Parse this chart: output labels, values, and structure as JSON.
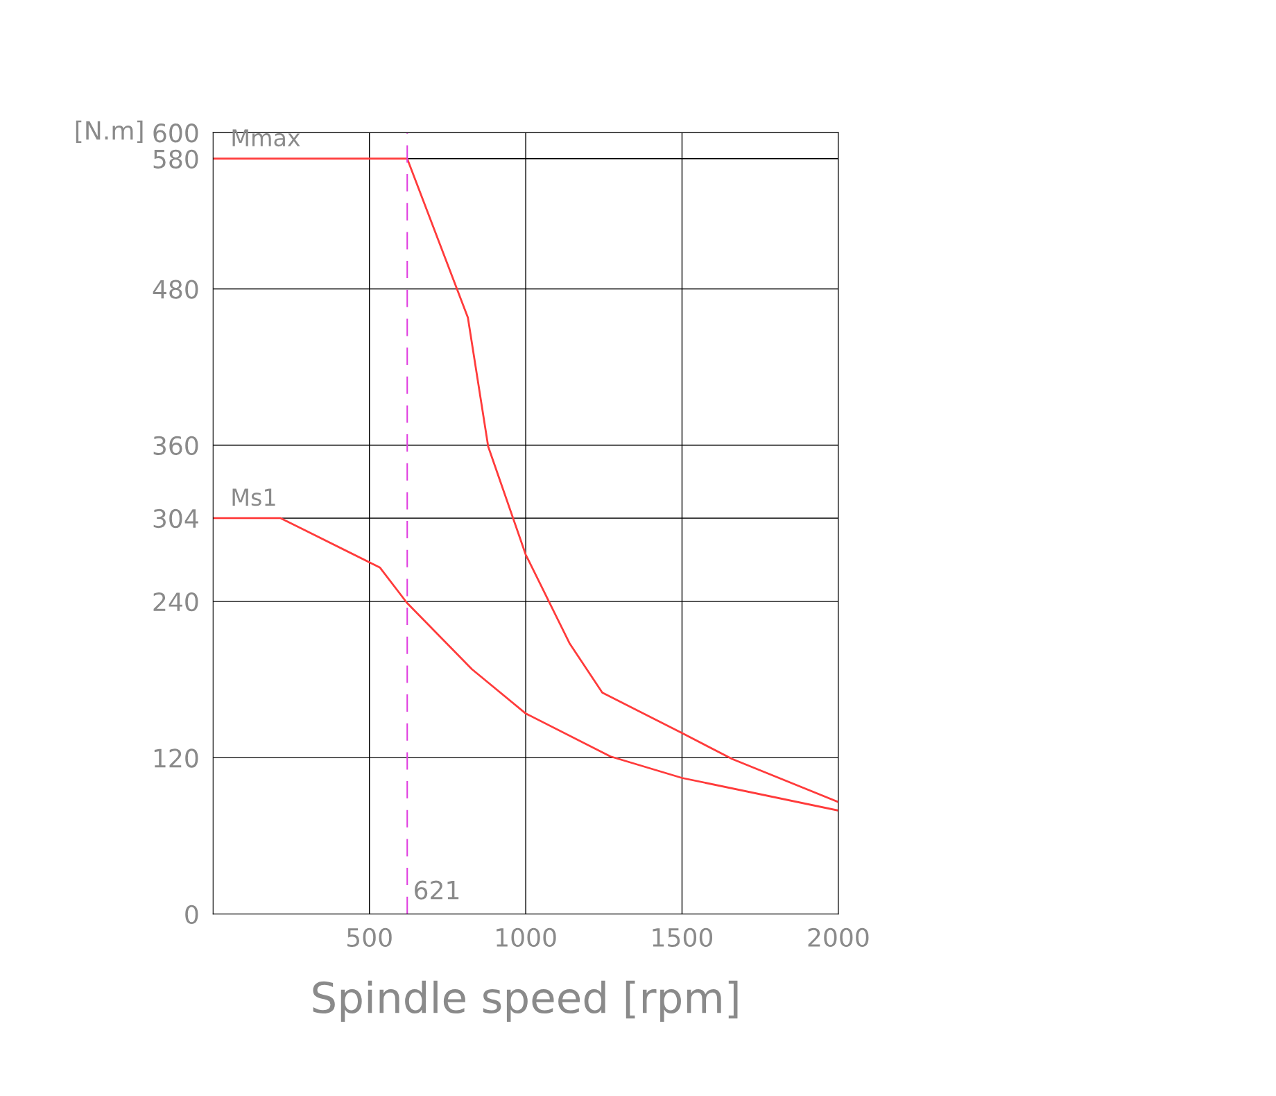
{
  "chart_data": {
    "type": "line",
    "xlabel": "Spindle speed [rpm]",
    "ylabel": "[N.m]",
    "xlim": [
      0,
      2000
    ],
    "xticks": [
      500,
      1000,
      1500,
      2000
    ],
    "ylim": [
      0,
      600
    ],
    "yticks": [
      0,
      120,
      240,
      304,
      360,
      480,
      580,
      600
    ],
    "grid": true,
    "legend": false,
    "marker": "none",
    "line_style": "solid",
    "series": [
      {
        "name": "Mmax",
        "color": "#ff3b3b",
        "x": [
          0,
          621,
          815,
          880,
          1000,
          1140,
          1245,
          1500,
          1661,
          2000
        ],
        "values": [
          580,
          580,
          458,
          359,
          276,
          208,
          170,
          139,
          119,
          86
        ]
      },
      {
        "name": "Ms1",
        "color": "#ff3b3b",
        "x": [
          0,
          216,
          534,
          620,
          828,
          1000,
          1271,
          1500,
          2000
        ],
        "values": [
          304,
          304,
          266,
          239,
          188,
          154,
          121,
          104.5,
          79.5
        ]
      }
    ],
    "ref_lines": [
      {
        "axis": "x",
        "value": 621,
        "label": "621",
        "color": "#e040e0",
        "line_style": "dashed"
      }
    ]
  }
}
